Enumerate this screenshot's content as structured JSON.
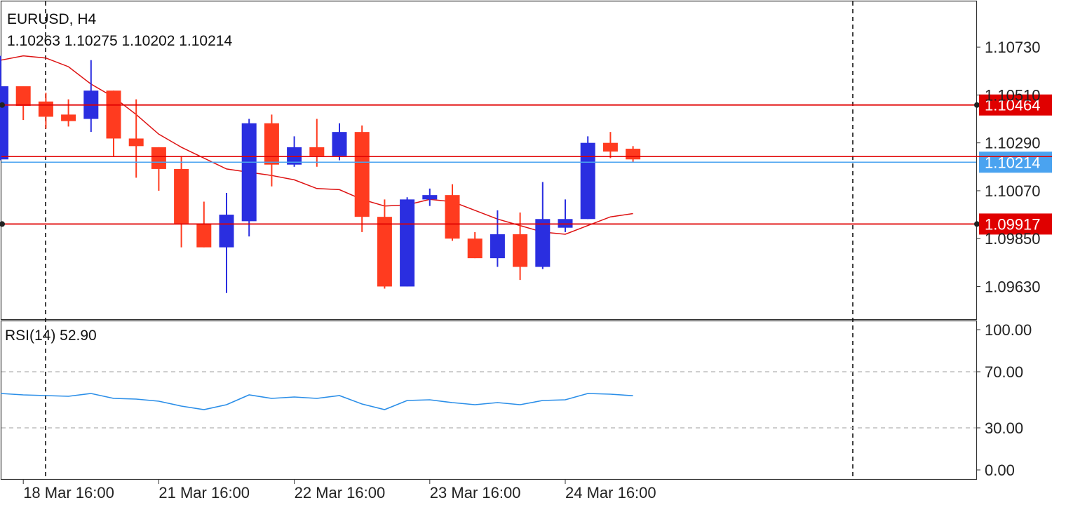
{
  "header": {
    "symbol_timeframe": "EURUSD, H4",
    "ohlc": "1.10263 1.10275 1.10202 1.10214"
  },
  "colors": {
    "bull": "#2a2ee0",
    "bear": "#ff3b1f",
    "ma": "#dd1111",
    "hline": "#e00000",
    "bid": "#4aa3f0",
    "rsi": "#2a8ee8",
    "frame": "#333333",
    "level_dash": "#b0b0b0"
  },
  "chart_data": {
    "type": "candlestick",
    "price_axis": {
      "ticks": [
        "1.10730",
        "1.10510",
        "1.10290",
        "1.10070",
        "1.09850",
        "1.09630"
      ],
      "range": [
        1.0948,
        1.1094
      ]
    },
    "time_axis": {
      "labels": [
        "18 Mar 16:00",
        "21 Mar 16:00",
        "22 Mar 16:00",
        "23 Mar 16:00",
        "24 Mar 16:00"
      ],
      "label_bar_index": [
        1,
        7,
        13,
        19,
        25
      ]
    },
    "candles": [
      {
        "o": 1.10214,
        "h": 1.1069,
        "l": 1.1021,
        "c": 1.1055
      },
      {
        "o": 1.1055,
        "h": 1.1055,
        "l": 1.10395,
        "c": 1.1046
      },
      {
        "o": 1.1048,
        "h": 1.1052,
        "l": 1.10355,
        "c": 1.1041
      },
      {
        "o": 1.1042,
        "h": 1.1049,
        "l": 1.10365,
        "c": 1.1039
      },
      {
        "o": 1.104,
        "h": 1.1067,
        "l": 1.1034,
        "c": 1.1053
      },
      {
        "o": 1.1053,
        "h": 1.1053,
        "l": 1.10225,
        "c": 1.1031
      },
      {
        "o": 1.1031,
        "h": 1.1049,
        "l": 1.1013,
        "c": 1.10275
      },
      {
        "o": 1.1027,
        "h": 1.1027,
        "l": 1.1007,
        "c": 1.1017
      },
      {
        "o": 1.1017,
        "h": 1.1023,
        "l": 1.0981,
        "c": 1.0992
      },
      {
        "o": 1.0992,
        "h": 1.1002,
        "l": 1.0981,
        "c": 1.0981
      },
      {
        "o": 1.0981,
        "h": 1.1006,
        "l": 1.096,
        "c": 1.0996
      },
      {
        "o": 1.0993,
        "h": 1.104,
        "l": 1.0986,
        "c": 1.1038
      },
      {
        "o": 1.1038,
        "h": 1.1042,
        "l": 1.1009,
        "c": 1.1019
      },
      {
        "o": 1.1019,
        "h": 1.1032,
        "l": 1.1018,
        "c": 1.1027
      },
      {
        "o": 1.1027,
        "h": 1.104,
        "l": 1.1018,
        "c": 1.1023
      },
      {
        "o": 1.1023,
        "h": 1.1038,
        "l": 1.1021,
        "c": 1.1034
      },
      {
        "o": 1.1034,
        "h": 1.1037,
        "l": 1.0988,
        "c": 1.0995
      },
      {
        "o": 1.0995,
        "h": 1.1003,
        "l": 1.0962,
        "c": 1.0963
      },
      {
        "o": 1.0963,
        "h": 1.1004,
        "l": 1.0963,
        "c": 1.1003
      },
      {
        "o": 1.1003,
        "h": 1.1008,
        "l": 1.1,
        "c": 1.1005
      },
      {
        "o": 1.1005,
        "h": 1.101,
        "l": 1.0984,
        "c": 1.0985
      },
      {
        "o": 1.0985,
        "h": 1.0988,
        "l": 1.0976,
        "c": 1.0976
      },
      {
        "o": 1.0976,
        "h": 1.0998,
        "l": 1.0972,
        "c": 1.0987
      },
      {
        "o": 1.0987,
        "h": 1.0997,
        "l": 1.0966,
        "c": 1.0972
      },
      {
        "o": 1.0972,
        "h": 1.1011,
        "l": 1.0971,
        "c": 1.0994
      },
      {
        "o": 1.099,
        "h": 1.1003,
        "l": 1.0988,
        "c": 1.0994
      },
      {
        "o": 1.0994,
        "h": 1.1032,
        "l": 1.0994,
        "c": 1.1029
      },
      {
        "o": 1.1029,
        "h": 1.1034,
        "l": 1.1022,
        "c": 1.1025
      },
      {
        "o": 1.10263,
        "h": 1.10275,
        "l": 1.10202,
        "c": 1.10214
      }
    ],
    "ma": [
      1.1067,
      1.1069,
      1.1068,
      1.1064,
      1.1056,
      1.105,
      1.1042,
      1.1033,
      1.1027,
      1.1022,
      1.1017,
      1.10155,
      1.1014,
      1.1012,
      1.1008,
      1.10075,
      1.1003,
      1.1,
      1.10005,
      1.1003,
      1.1002,
      1.0998,
      1.0994,
      1.0991,
      1.0988,
      1.0987,
      1.0991,
      1.0995,
      1.09965
    ],
    "hlines": [
      {
        "price": 1.10464,
        "label": "1.10464"
      },
      {
        "price": 1.09917,
        "label": "1.09917"
      }
    ],
    "current_price": {
      "price": 1.10214,
      "label": "1.10214"
    },
    "rsi": {
      "label": "RSI(14) 52.90",
      "range": [
        0,
        100
      ],
      "ticks": [
        "100.00",
        "70.00",
        "30.00",
        "0.00"
      ],
      "levels": [
        70,
        30
      ],
      "values": [
        54.5,
        53.5,
        53.0,
        52.5,
        54.5,
        51.0,
        50.5,
        49.0,
        45.5,
        43.0,
        46.5,
        53.5,
        51.0,
        52.0,
        51.0,
        53.0,
        47.0,
        43.0,
        49.5,
        50.0,
        48.0,
        46.5,
        48.0,
        46.5,
        49.5,
        50.0,
        54.5,
        54.0,
        52.9
      ]
    }
  }
}
